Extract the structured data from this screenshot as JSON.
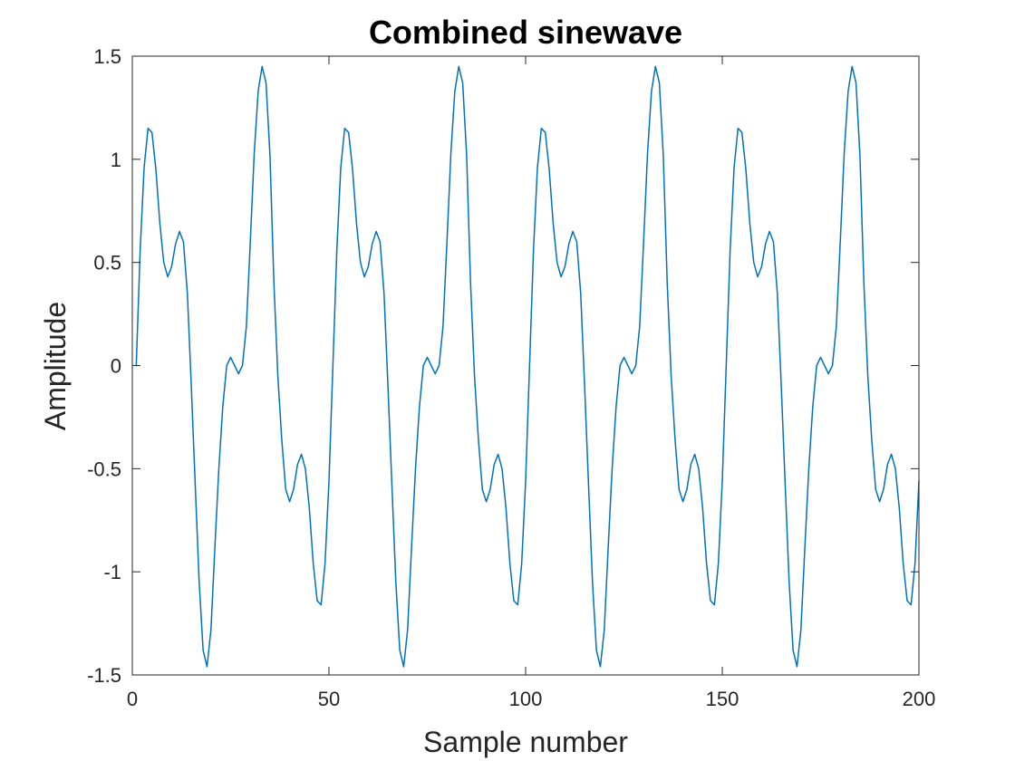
{
  "chart_data": {
    "type": "line",
    "title": "Combined sinewave",
    "xlabel": "Sample number",
    "ylabel": "Amplitude",
    "xlim": [
      0,
      200
    ],
    "ylim": [
      -1.5,
      1.5
    ],
    "x_ticks": [
      0,
      50,
      100,
      150,
      200
    ],
    "x_tick_labels": [
      "0",
      "50",
      "100",
      "150",
      "200"
    ],
    "y_ticks": [
      -1.5,
      -1,
      -0.5,
      0,
      0.5,
      1,
      1.5
    ],
    "y_tick_labels": [
      "-1.5",
      "-1",
      "-0.5",
      "0",
      "0.5",
      "1",
      "1.5"
    ],
    "grid": false,
    "series": [
      {
        "color": "#0072bd",
        "x_start": 1,
        "x_step": 1,
        "values": [
          0,
          0.56,
          0.96,
          1.15,
          1.13,
          0.95,
          0.69,
          0.5,
          0.43,
          0.48,
          0.59,
          0.65,
          0.6,
          0.35,
          -0.1,
          -0.58,
          -1.05,
          -1.38,
          -1.46,
          -1.28,
          -0.88,
          -0.5,
          -0.2,
          0,
          0.04,
          0,
          -0.04,
          0,
          0.19,
          0.6,
          1.03,
          1.33,
          1.45,
          1.37,
          1.02,
          0.4,
          -0.05,
          -0.36,
          -0.6,
          -0.66,
          -0.6,
          -0.48,
          -0.43,
          -0.5,
          -0.69,
          -0.96,
          -1.14,
          -1.16,
          -0.96,
          -0.56,
          0,
          0.56,
          0.96,
          1.15,
          1.13,
          0.95,
          0.69,
          0.5,
          0.43,
          0.48,
          0.59,
          0.65,
          0.6,
          0.35,
          -0.1,
          -0.58,
          -1.05,
          -1.38,
          -1.46,
          -1.28,
          -0.88,
          -0.5,
          -0.2,
          0,
          0.04,
          0,
          -0.04,
          0,
          0.19,
          0.6,
          1.03,
          1.33,
          1.45,
          1.37,
          1.02,
          0.4,
          -0.05,
          -0.36,
          -0.6,
          -0.66,
          -0.6,
          -0.48,
          -0.43,
          -0.5,
          -0.69,
          -0.96,
          -1.14,
          -1.16,
          -0.96,
          -0.56,
          0,
          0.56,
          0.96,
          1.15,
          1.13,
          0.95,
          0.69,
          0.5,
          0.43,
          0.48,
          0.59,
          0.65,
          0.6,
          0.35,
          -0.1,
          -0.58,
          -1.05,
          -1.38,
          -1.46,
          -1.28,
          -0.88,
          -0.5,
          -0.2,
          0,
          0.04,
          0,
          -0.04,
          0,
          0.19,
          0.6,
          1.03,
          1.33,
          1.45,
          1.37,
          1.02,
          0.4,
          -0.05,
          -0.36,
          -0.6,
          -0.66,
          -0.6,
          -0.48,
          -0.43,
          -0.5,
          -0.69,
          -0.96,
          -1.14,
          -1.16,
          -0.96,
          -0.56,
          0,
          0.56,
          0.96,
          1.15,
          1.13,
          0.95,
          0.69,
          0.5,
          0.43,
          0.48,
          0.59,
          0.65,
          0.6,
          0.35,
          -0.1,
          -0.58,
          -1.05,
          -1.38,
          -1.46,
          -1.28,
          -0.88,
          -0.5,
          -0.2,
          0,
          0.04,
          0,
          -0.04,
          0,
          0.19,
          0.6,
          1.03,
          1.33,
          1.45,
          1.37,
          1.02,
          0.4,
          -0.05,
          -0.36,
          -0.6,
          -0.66,
          -0.6,
          -0.48,
          -0.43,
          -0.5,
          -0.69,
          -0.96,
          -1.14,
          -1.16,
          -0.96,
          -0.56
        ]
      }
    ]
  }
}
